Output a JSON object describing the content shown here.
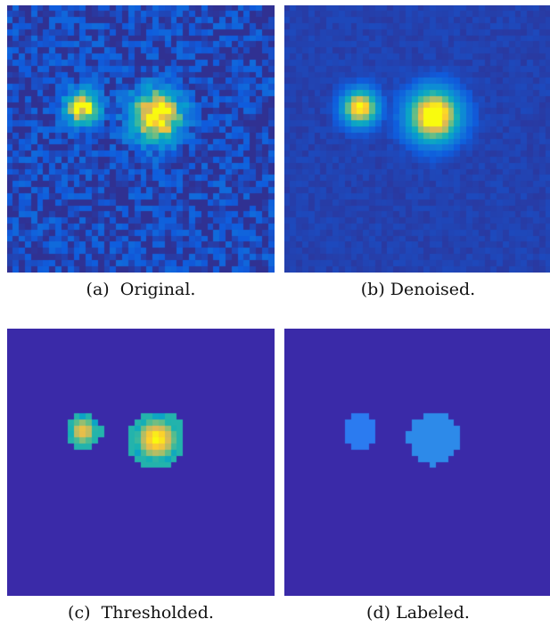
{
  "colormap": {
    "name": "parula",
    "background": "#3a2aa8",
    "labels_region": [
      "#2b7bf0",
      "#2d8ae9"
    ]
  },
  "panels": [
    {
      "id": "a",
      "caption": "(a)  Original.",
      "mode": "noisy"
    },
    {
      "id": "b",
      "caption": "(b) Denoised.",
      "mode": "smooth"
    },
    {
      "id": "c",
      "caption": "(c)  Thresholded.",
      "mode": "threshold"
    },
    {
      "id": "d",
      "caption": "(d) Labeled.",
      "mode": "labels"
    }
  ],
  "blobs": [
    {
      "center": [
        0.285,
        0.385
      ],
      "radius": 0.065,
      "peak": 0.93
    },
    {
      "center": [
        0.56,
        0.415
      ],
      "radius": 0.098,
      "peak": 1.0
    }
  ]
}
